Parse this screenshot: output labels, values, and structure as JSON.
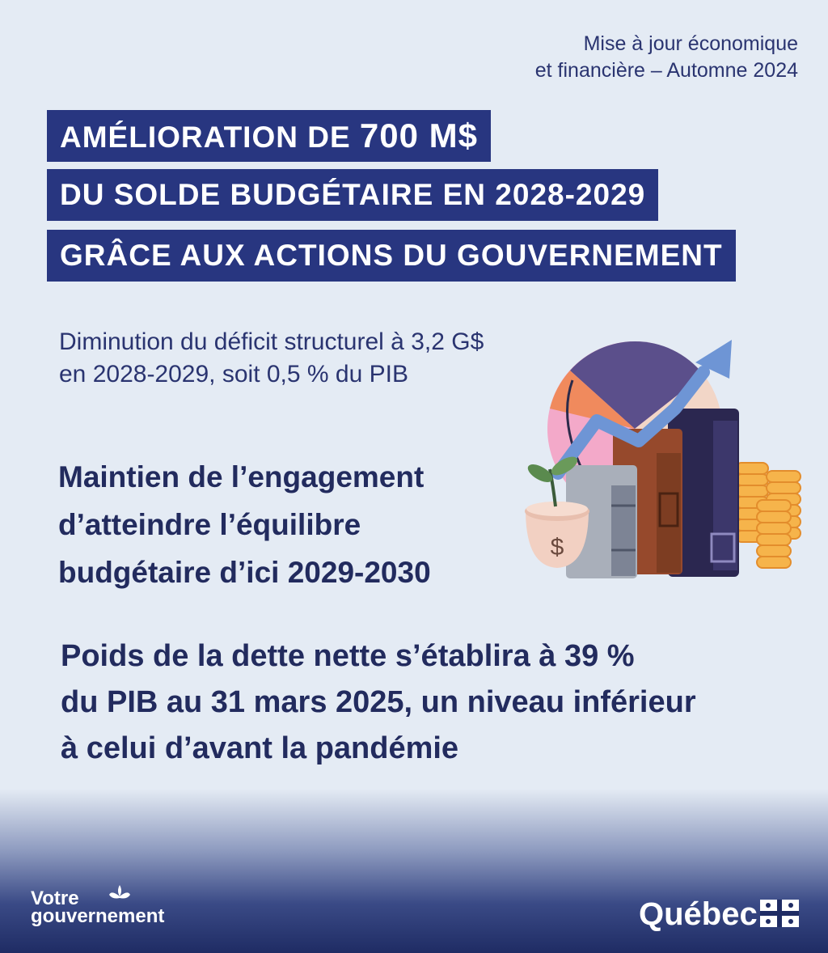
{
  "header": {
    "note_line1": "Mise à jour économique",
    "note_line2": "et financière – Automne 2024"
  },
  "banners": {
    "line1_prefix": "AMÉLIORATION DE ",
    "line1_amount": "700 M$",
    "line2": "DU SOLDE BUDGÉTAIRE EN 2028-2029",
    "line3": "GRÂCE AUX ACTIONS DU GOUVERNEMENT"
  },
  "points": {
    "deficit_line1": "Diminution du déficit structurel à 3,2 G$",
    "deficit_line2": "en 2028-2029, soit 0,5 % du PIB",
    "balance_line1": "Maintien de l’engagement",
    "balance_line2": "d’atteindre l’équilibre",
    "balance_line3": "budgétaire d’ici 2029-2030",
    "debt_line1": "Poids de la dette nette s’établira à 39 %",
    "debt_line2": "du PIB au 31 mars 2025, un niveau inférieur",
    "debt_line3": "à celui d’avant la pandémie"
  },
  "illustration": {
    "pot_symbol": "$"
  },
  "footer": {
    "left_logo_line1": "Votre",
    "left_logo_line2": "gouvernement",
    "right_logo": "Québec"
  },
  "colors": {
    "background": "#e4ebf4",
    "banner": "#283680",
    "text": "#2a3470",
    "footer": "#1f2c64"
  }
}
